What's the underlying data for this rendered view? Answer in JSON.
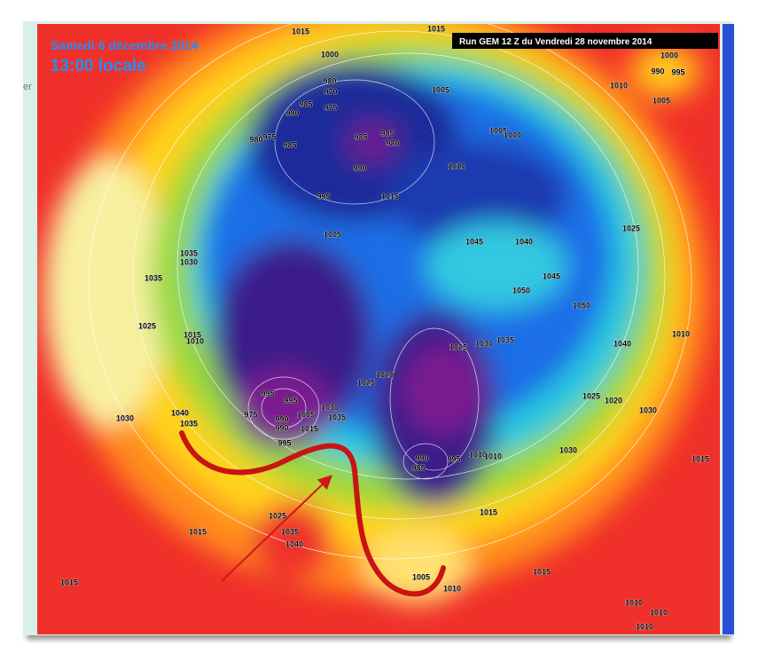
{
  "header": {
    "date": "Samedi 6 décembre 2014",
    "time": "13:00 locale",
    "run": "Run GEM 12 Z du Vendredi 28 novembre 2014"
  },
  "side_fragment": "er",
  "contour_labels": [
    "1015",
    "1015",
    "1000",
    "980",
    "970",
    "975",
    "985",
    "990",
    "1005",
    "1000",
    "990",
    "995",
    "1010",
    "1005",
    "985",
    "985",
    "980",
    "980",
    "975",
    "985",
    "990",
    "1005",
    "1000",
    "1010",
    "995",
    "1015",
    "1005",
    "1045",
    "1040",
    "1025",
    "1035",
    "1030",
    "1035",
    "1050",
    "1045",
    "1050",
    "1025",
    "1015",
    "1010",
    "1040",
    "1010",
    "1025",
    "1030",
    "1035",
    "1020",
    "1025",
    "995",
    "995",
    "975",
    "1030",
    "1005",
    "1040",
    "1035",
    "1030",
    "1025",
    "1020",
    "1030",
    "990",
    "990",
    "1015",
    "1035",
    "995",
    "990",
    "985",
    "995",
    "1010",
    "1010",
    "1030",
    "1015",
    "1015",
    "1025",
    "1035",
    "1040",
    "1015",
    "1015",
    "1015",
    "1005",
    "1010",
    "1010",
    "1010",
    "1010"
  ]
}
